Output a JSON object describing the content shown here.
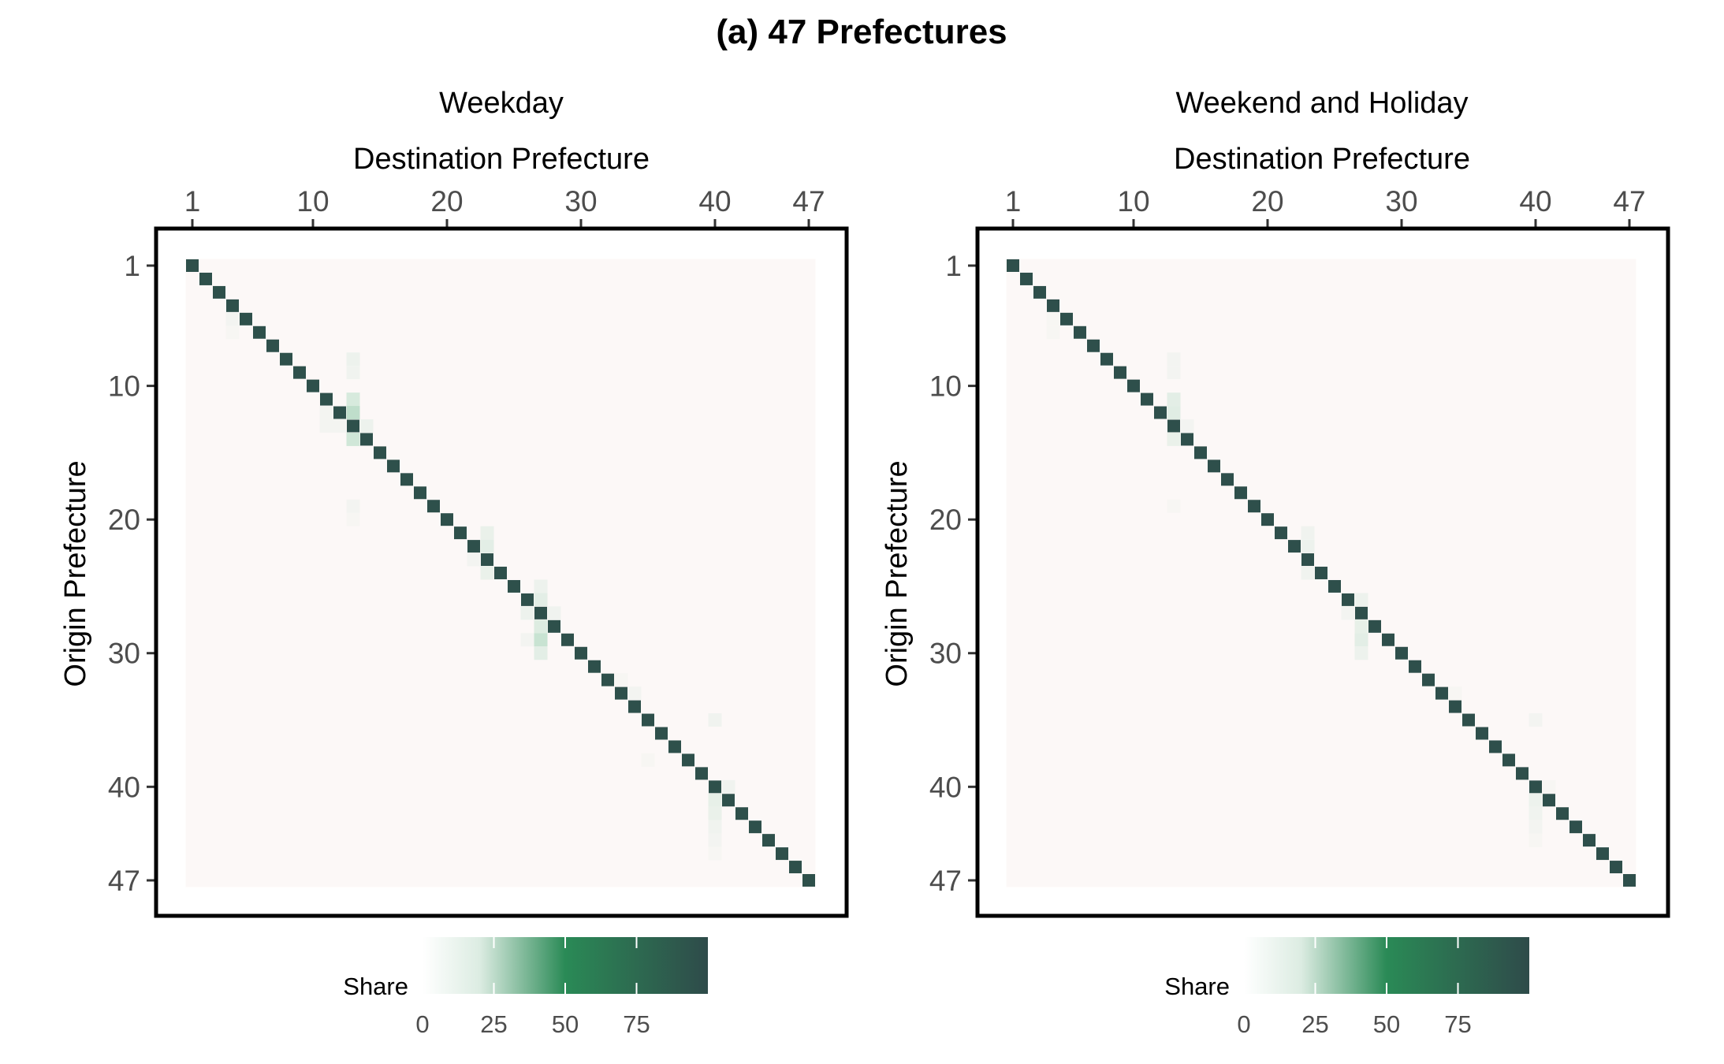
{
  "figure": {
    "title": "(a) 47 Prefectures"
  },
  "chart_data": [
    {
      "type": "heatmap",
      "title": "Weekday",
      "xlabel": "Destination Prefecture",
      "ylabel": "Origin Prefecture",
      "n": 47,
      "xticks": [
        1,
        10,
        20,
        30,
        40,
        47
      ],
      "yticks": [
        1,
        10,
        20,
        30,
        40,
        47
      ],
      "diagonal_share": 96,
      "background_share": 0.3,
      "off_diagonal": [
        {
          "origin": 11,
          "dest": 13,
          "share": 12
        },
        {
          "origin": 12,
          "dest": 13,
          "share": 18
        },
        {
          "origin": 14,
          "dest": 13,
          "share": 14
        },
        {
          "origin": 8,
          "dest": 13,
          "share": 5
        },
        {
          "origin": 9,
          "dest": 13,
          "share": 4
        },
        {
          "origin": 13,
          "dest": 11,
          "share": 3
        },
        {
          "origin": 13,
          "dest": 12,
          "share": 3
        },
        {
          "origin": 13,
          "dest": 14,
          "share": 5
        },
        {
          "origin": 4,
          "dest": 4,
          "share": 0
        },
        {
          "origin": 5,
          "dest": 4,
          "share": 3
        },
        {
          "origin": 6,
          "dest": 4,
          "share": 2
        },
        {
          "origin": 19,
          "dest": 13,
          "share": 3
        },
        {
          "origin": 20,
          "dest": 13,
          "share": 2
        },
        {
          "origin": 22,
          "dest": 23,
          "share": 8
        },
        {
          "origin": 21,
          "dest": 23,
          "share": 6
        },
        {
          "origin": 24,
          "dest": 23,
          "share": 6
        },
        {
          "origin": 23,
          "dest": 22,
          "share": 3
        },
        {
          "origin": 25,
          "dest": 27,
          "share": 5
        },
        {
          "origin": 26,
          "dest": 27,
          "share": 8
        },
        {
          "origin": 28,
          "dest": 27,
          "share": 10
        },
        {
          "origin": 29,
          "dest": 27,
          "share": 16
        },
        {
          "origin": 30,
          "dest": 27,
          "share": 8
        },
        {
          "origin": 26,
          "dest": 26,
          "share": 0
        },
        {
          "origin": 27,
          "dest": 26,
          "share": 5
        },
        {
          "origin": 27,
          "dest": 28,
          "share": 4
        },
        {
          "origin": 29,
          "dest": 26,
          "share": 3
        },
        {
          "origin": 33,
          "dest": 34,
          "share": 3
        },
        {
          "origin": 32,
          "dest": 33,
          "share": 2
        },
        {
          "origin": 35,
          "dest": 40,
          "share": 4
        },
        {
          "origin": 41,
          "dest": 40,
          "share": 7
        },
        {
          "origin": 42,
          "dest": 40,
          "share": 6
        },
        {
          "origin": 43,
          "dest": 40,
          "share": 4
        },
        {
          "origin": 44,
          "dest": 40,
          "share": 3
        },
        {
          "origin": 40,
          "dest": 41,
          "share": 4
        },
        {
          "origin": 45,
          "dest": 40,
          "share": 2
        },
        {
          "origin": 12,
          "dest": 11,
          "share": 3
        },
        {
          "origin": 38,
          "dest": 35,
          "share": 2
        }
      ],
      "legend": {
        "title": "Share",
        "ticks": [
          0,
          25,
          50,
          75
        ],
        "range": [
          0,
          100
        ]
      }
    },
    {
      "type": "heatmap",
      "title": "Weekend and Holiday",
      "xlabel": "Destination Prefecture",
      "ylabel": "Origin Prefecture",
      "n": 47,
      "xticks": [
        1,
        10,
        20,
        30,
        40,
        47
      ],
      "yticks": [
        1,
        10,
        20,
        30,
        40,
        47
      ],
      "diagonal_share": 97,
      "background_share": 0.3,
      "off_diagonal": [
        {
          "origin": 11,
          "dest": 13,
          "share": 8
        },
        {
          "origin": 12,
          "dest": 13,
          "share": 9
        },
        {
          "origin": 14,
          "dest": 13,
          "share": 6
        },
        {
          "origin": 8,
          "dest": 13,
          "share": 3
        },
        {
          "origin": 9,
          "dest": 13,
          "share": 3
        },
        {
          "origin": 13,
          "dest": 14,
          "share": 3
        },
        {
          "origin": 5,
          "dest": 4,
          "share": 2
        },
        {
          "origin": 6,
          "dest": 4,
          "share": 2
        },
        {
          "origin": 19,
          "dest": 13,
          "share": 2
        },
        {
          "origin": 22,
          "dest": 23,
          "share": 5
        },
        {
          "origin": 21,
          "dest": 23,
          "share": 4
        },
        {
          "origin": 24,
          "dest": 23,
          "share": 4
        },
        {
          "origin": 26,
          "dest": 27,
          "share": 5
        },
        {
          "origin": 28,
          "dest": 27,
          "share": 7
        },
        {
          "origin": 29,
          "dest": 27,
          "share": 8
        },
        {
          "origin": 30,
          "dest": 27,
          "share": 5
        },
        {
          "origin": 27,
          "dest": 26,
          "share": 3
        },
        {
          "origin": 33,
          "dest": 34,
          "share": 2
        },
        {
          "origin": 35,
          "dest": 40,
          "share": 3
        },
        {
          "origin": 41,
          "dest": 40,
          "share": 5
        },
        {
          "origin": 42,
          "dest": 40,
          "share": 4
        },
        {
          "origin": 43,
          "dest": 40,
          "share": 3
        },
        {
          "origin": 44,
          "dest": 40,
          "share": 2
        },
        {
          "origin": 40,
          "dest": 41,
          "share": 2
        }
      ],
      "legend": {
        "title": "Share",
        "ticks": [
          0,
          25,
          50,
          75
        ],
        "range": [
          0,
          100
        ]
      }
    }
  ],
  "colors": {
    "scale_low": "#fdf8f8",
    "scale_mid": "#2a8a56",
    "scale_high": "#2e4b4a",
    "text": "#000000",
    "tick_text": "#4d4d4d",
    "frame": "#000000"
  }
}
